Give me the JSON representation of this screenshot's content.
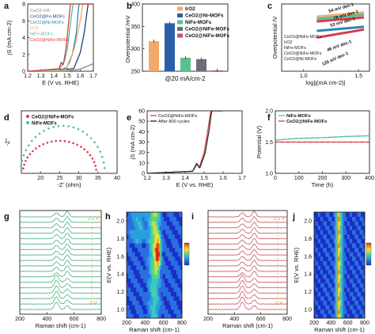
{
  "figure": {
    "panels": [
      {
        "letter": "a"
      },
      {
        "letter": "b"
      },
      {
        "letter": "c"
      },
      {
        "letter": "d"
      },
      {
        "letter": "e"
      },
      {
        "letter": "f"
      },
      {
        "letter": "g"
      },
      {
        "letter": "h"
      },
      {
        "letter": "i"
      },
      {
        "letter": "j"
      }
    ]
  },
  "colors": {
    "ceo2_oa": "#8a8a8a",
    "ceo2_fe": "#1f3f78",
    "ceo2_ni": "#2d86b4",
    "iro2": "#f2aa6c",
    "nife": "#4fbf9d",
    "ceo2_nife": "#d83b4a",
    "ceo2_ni_bar": "#2a5fa8",
    "nife_bar": "#5cc08a",
    "ceo2_nife_bar": "#c7506e",
    "dark_red": "#8b1f2a",
    "spectra_green": "#34a36f",
    "spectra_red": "#c2414e"
  },
  "chart_data": [
    {
      "panel": "a",
      "type": "line",
      "xlabel": "E (V vs. RHE)",
      "ylabel": "jS (mA cm-2)",
      "xlim": [
        1.2,
        1.7
      ],
      "ylim": [
        0,
        8
      ],
      "xticks": [
        "1.2",
        "1.3",
        "1.4",
        "1.5",
        "1.6",
        "1.7"
      ],
      "yticks": [
        "0",
        "2",
        "4",
        "6",
        "8"
      ],
      "legend_position": "top-left",
      "series": [
        {
          "name": "CeO2-OA",
          "x": [
            1.2,
            1.5,
            1.6,
            1.7
          ],
          "y": [
            0.0,
            0.05,
            0.25,
            0.9
          ]
        },
        {
          "name": "CeO2@Fe-MOFs",
          "x": [
            1.2,
            1.55,
            1.6,
            1.63,
            1.66
          ],
          "y": [
            0.0,
            0.3,
            2.2,
            4.5,
            8.0
          ]
        },
        {
          "name": "CeO2@Ni-MOFs",
          "x": [
            1.2,
            1.45,
            1.5,
            1.54,
            1.57,
            1.59
          ],
          "y": [
            0.0,
            0.1,
            0.5,
            2.0,
            4.5,
            8.0
          ]
        },
        {
          "name": "IrO2",
          "x": [
            1.2,
            1.48,
            1.52,
            1.56,
            1.6,
            1.62
          ],
          "y": [
            0.0,
            0.1,
            1.0,
            3.0,
            6.0,
            8.0
          ]
        },
        {
          "name": "NiFe-MOFs",
          "x": [
            1.2,
            1.44,
            1.48,
            1.5,
            1.52,
            1.545
          ],
          "y": [
            0.0,
            0.2,
            1.2,
            2.5,
            5.0,
            8.0
          ]
        },
        {
          "name": "CeO2@NiFe-MOFs",
          "x": [
            1.2,
            1.44,
            1.455,
            1.47,
            1.49,
            1.51,
            1.525
          ],
          "y": [
            0.0,
            0.3,
            1.1,
            0.7,
            2.5,
            5.5,
            8.0
          ]
        }
      ]
    },
    {
      "panel": "b",
      "type": "bar",
      "xlabel": "@20 mA/cm-2",
      "ylabel": "Overpotential /mV",
      "ylim": [
        250,
        400
      ],
      "yticks": [
        "250",
        "300",
        "350",
        "400"
      ],
      "categories": [
        "IrO2",
        "CeO2@Ni-MOFs",
        "NiFe-MOFs",
        "CeO2@NiFe-MOFs",
        "CeO2@NiFe-MOFs"
      ],
      "legend": [
        "IrO2",
        "CeO2@Ni-MOFs",
        "NiFe-MOFs",
        "CeO2@NiFe-MOFs",
        "CeO2@NiFe-MOFs"
      ],
      "values": [
        317,
        357,
        280,
        277,
        252
      ]
    },
    {
      "panel": "c",
      "type": "line",
      "xlabel": "log|j(mA cm-2)|",
      "ylabel": "Overpotential /V",
      "xlim": [
        0.8,
        1.6
      ],
      "ylim": [
        0.1,
        0.6
      ],
      "xticks": [
        "1.0",
        "1.5"
      ],
      "legend": [
        "CeO2@NiFe-MOFs",
        "IrO2",
        "NiFe-MOFs",
        "CeO2@NiFe-MOFs",
        "CeO2@Ni-MOFs"
      ],
      "annotations": [
        "54 mV dec-1",
        "78 mV dec-1",
        "53 mV dec-1",
        "46 mV dec-1",
        "125 mV dec-1"
      ],
      "series": [
        {
          "name": "IrO2",
          "x": [
            1.12,
            1.55
          ],
          "y": [
            0.505,
            0.537
          ]
        },
        {
          "name": "NiFe-MOFs",
          "x": [
            1.12,
            1.55
          ],
          "y": [
            0.488,
            0.52
          ]
        },
        {
          "name": "CeO2@NiFe-MOFs",
          "x": [
            1.12,
            1.55
          ],
          "y": [
            0.47,
            0.5
          ]
        },
        {
          "name": "CeO2@Ni-MOFs",
          "x": [
            1.12,
            1.55
          ],
          "y": [
            0.4,
            0.43
          ]
        },
        {
          "name": "CeO2@NiFe-MOFs",
          "x": [
            1.12,
            1.55
          ],
          "y": [
            0.35,
            0.41
          ]
        }
      ]
    },
    {
      "panel": "d",
      "type": "scatter",
      "xlabel": "-Z' (ohm)",
      "ylabel": "-Z''",
      "xlim": [
        15,
        40
      ],
      "ylim": [
        0,
        10
      ],
      "xticks": [
        "20",
        "25",
        "30",
        "35",
        "40"
      ],
      "legend": [
        "CeO2@NiFe-MOFs",
        "NiFe-MOFs"
      ],
      "series": [
        {
          "name": "CeO2@NiFe-MOFs",
          "center": 25.0,
          "radius": 9.6,
          "height": 5.2
        },
        {
          "name": "NiFe-MOFs",
          "center": 25.8,
          "radius": 11.0,
          "height": 7.6
        }
      ]
    },
    {
      "panel": "e",
      "type": "line",
      "xlabel": "E (V vs. RHE)",
      "ylabel": "jS (mA cm-2)",
      "xlim": [
        1.2,
        1.7
      ],
      "ylim": [
        0,
        60
      ],
      "xticks": [
        "1.2",
        "1.3",
        "1.4",
        "1.5",
        "1.6",
        "1.7"
      ],
      "yticks": [
        "0",
        "10",
        "20",
        "30",
        "40",
        "50",
        "60"
      ],
      "legend": [
        "CeO2@NiFe-MOFs",
        "After 800 cycles"
      ],
      "series": [
        {
          "name": "CeO2@NiFe-MOFs",
          "x": [
            1.2,
            1.44,
            1.46,
            1.475,
            1.5,
            1.52,
            1.535
          ],
          "y": [
            0,
            2,
            10,
            6,
            20,
            42,
            60
          ]
        },
        {
          "name": "After 800 cycles",
          "x": [
            1.2,
            1.44,
            1.462,
            1.477,
            1.505,
            1.525,
            1.54
          ],
          "y": [
            0,
            2,
            9,
            5,
            19,
            40,
            60
          ]
        }
      ]
    },
    {
      "panel": "f",
      "type": "line",
      "xlabel": "Time (h)",
      "ylabel": "Potential (V)",
      "xlim": [
        0,
        400
      ],
      "ylim": [
        1.0,
        2.0
      ],
      "xticks": [
        "0",
        "100",
        "200",
        "300",
        "400"
      ],
      "yticks": [
        "1.0",
        "1.5",
        "2.0"
      ],
      "legend": [
        "NiFe-MOFs",
        "CeO2@NiFe-MOFs"
      ],
      "series": [
        {
          "name": "NiFe-MOFs",
          "x": [
            0,
            100,
            200,
            300,
            400
          ],
          "y": [
            1.53,
            1.56,
            1.57,
            1.59,
            1.6
          ]
        },
        {
          "name": "CeO2@NiFe-MOFs",
          "x": [
            0,
            100,
            200,
            300,
            400
          ],
          "y": [
            1.5,
            1.5,
            1.5,
            1.5,
            1.5
          ]
        }
      ]
    },
    {
      "panel": "g",
      "type": "line",
      "xlabel": "Raman shift (cm-1)",
      "xlim": [
        200,
        800
      ],
      "xticks": [
        "200",
        "400",
        "600",
        "800"
      ],
      "annotations": [
        "2.1 V",
        "0 V"
      ],
      "peaks_cm-1": [
        470,
        550
      ]
    },
    {
      "panel": "h",
      "type": "heatmap",
      "xlabel": "Raman shift (cm-1)",
      "ylabel": "E(V vs. RHE)",
      "xlim": [
        200,
        800
      ],
      "ylim": [
        0.9,
        2.1
      ],
      "xticks": [
        "200",
        "400",
        "600",
        "800"
      ],
      "yticks": [
        "1.0",
        "1.2",
        "1.4",
        "1.6",
        "1.8",
        "2.0"
      ]
    },
    {
      "panel": "i",
      "type": "line",
      "xlabel": "Raman shift (cm-1)",
      "xlim": [
        200,
        800
      ],
      "xticks": [
        "200",
        "400",
        "600",
        "800"
      ],
      "annotations": [
        "2.1 V",
        "0 V"
      ],
      "peaks_cm-1": [
        460,
        550
      ]
    },
    {
      "panel": "j",
      "type": "heatmap",
      "xlabel": "Raman shift (cm-1)",
      "ylabel": "E(V vs. RHE)",
      "xlim": [
        200,
        800
      ],
      "ylim": [
        0.9,
        2.1
      ],
      "xticks": [
        "200",
        "400",
        "600",
        "800"
      ],
      "yticks": [
        "1.0",
        "1.2",
        "1.4",
        "1.6",
        "1.8",
        "2.0"
      ]
    }
  ]
}
